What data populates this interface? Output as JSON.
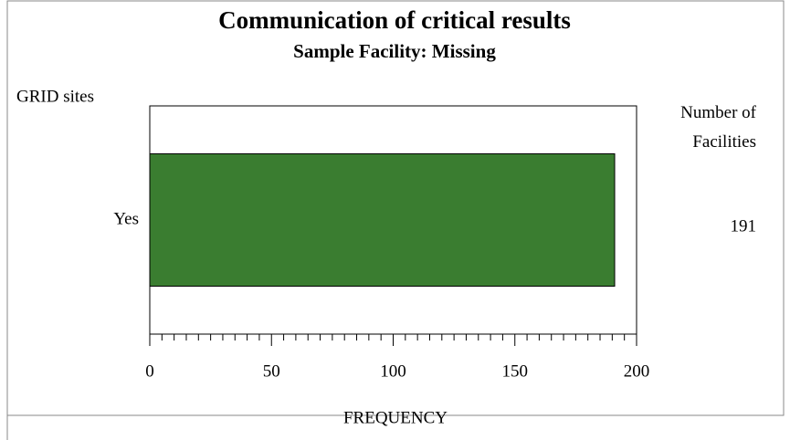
{
  "chart_data": {
    "type": "hbar",
    "title": "Communication of critical results",
    "subtitle": "Sample Facility: Missing",
    "y_axis_label": "GRID sites",
    "value_column_label": "Number of Facilities",
    "x_axis_label": "FREQUENCY",
    "categories": [
      "Yes"
    ],
    "values": [
      191
    ],
    "color": "#3a7d30",
    "xlim": [
      0,
      200
    ],
    "xticks": [
      0,
      50,
      100,
      150,
      200
    ],
    "xminorticks": [
      5,
      10,
      15,
      20,
      25,
      30,
      35,
      40,
      45,
      55,
      60,
      65,
      70,
      75,
      80,
      85,
      90,
      95,
      105,
      110,
      115,
      120,
      125,
      130,
      135,
      140,
      145,
      155,
      160,
      165,
      170,
      175,
      180,
      185,
      190,
      195
    ]
  }
}
